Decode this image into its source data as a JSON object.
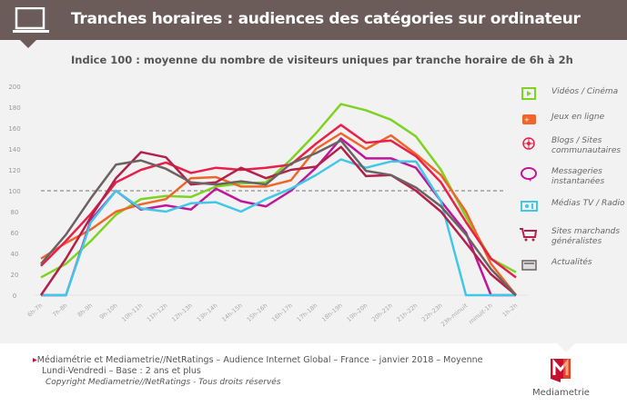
{
  "header": {
    "title": "Tranches horaires : audiences des catégories sur ordinateur",
    "icon": "laptop-icon"
  },
  "chart_data": {
    "type": "line",
    "title": "Indice 100 : moyenne du nombre de visiteurs uniques par tranche horaire de 6h à 2h",
    "ylim": [
      0,
      200
    ],
    "yticks": [
      "0",
      "20",
      "40",
      "60",
      "80",
      "100",
      "120",
      "140",
      "160",
      "180",
      "200"
    ],
    "reference_line": 100,
    "grid": false,
    "legend_placement": "right",
    "categories": [
      "6h-7h",
      "7h-8h",
      "8h-9h",
      "9h-10h",
      "10h-11h",
      "11h-12h",
      "12h-13h",
      "13h-14h",
      "14h-15h",
      "15h-16h",
      "16h-17h",
      "17h-18h",
      "18h-19h",
      "19h-20h",
      "20h-21h",
      "21h-22h",
      "22h-23h",
      "23h-minuit",
      "minuit-1h",
      "1h-2h"
    ],
    "series": [
      {
        "name": "Vidéos / Cinéma",
        "color": "#7ed321",
        "icon": "video-play-icon",
        "values": [
          17,
          30,
          52,
          77,
          92,
          95,
          94,
          104,
          107,
          108,
          130,
          155,
          183,
          177,
          168,
          152,
          120,
          75,
          35,
          22
        ]
      },
      {
        "name": "Jeux en ligne",
        "color": "#f0662a",
        "icon": "gamepad-icon",
        "values": [
          35,
          50,
          63,
          80,
          87,
          92,
          112,
          113,
          104,
          104,
          110,
          140,
          155,
          140,
          153,
          135,
          115,
          80,
          30,
          0
        ]
      },
      {
        "name": "Blogs / Sites communautaires",
        "color": "#e8204a",
        "icon": "network-icon",
        "values": [
          28,
          52,
          78,
          108,
          120,
          127,
          117,
          122,
          120,
          122,
          125,
          145,
          163,
          146,
          148,
          133,
          108,
          70,
          35,
          17
        ]
      },
      {
        "name": "Messageries instantanées",
        "color": "#c0169a",
        "icon": "speech-bubble-icon",
        "values": [
          0,
          0,
          72,
          100,
          82,
          86,
          82,
          102,
          90,
          85,
          100,
          122,
          150,
          131,
          131,
          122,
          90,
          60,
          0,
          0
        ]
      },
      {
        "name": "Médias TV / Radio",
        "color": "#3fc8e8",
        "icon": "radio-icon",
        "values": [
          0,
          0,
          70,
          100,
          83,
          80,
          88,
          89,
          80,
          92,
          102,
          115,
          130,
          122,
          128,
          128,
          90,
          0,
          0,
          0
        ]
      },
      {
        "name": "Sites marchands généralistes",
        "color": "#b5204a",
        "icon": "shopping-cart-icon",
        "values": [
          0,
          35,
          75,
          112,
          137,
          132,
          106,
          108,
          122,
          112,
          120,
          123,
          142,
          114,
          115,
          100,
          80,
          50,
          20,
          0
        ]
      },
      {
        "name": "Actualités",
        "color": "#6b6262",
        "icon": "newspaper-icon",
        "values": [
          30,
          58,
          93,
          125,
          129,
          121,
          108,
          106,
          109,
          106,
          126,
          136,
          148,
          119,
          115,
          103,
          85,
          58,
          25,
          0
        ]
      }
    ]
  },
  "footer": {
    "line1": "Médiamétrie et Mediametrie//NetRatings – Audience Internet Global – France – janvier 2018 – Moyenne",
    "line2": "Lundi-Vendredi – Base : 2 ans et plus",
    "copyright": "Copyright Mediametrie//NetRatings - Tous droits réservés",
    "logo": "Mediametrie"
  }
}
